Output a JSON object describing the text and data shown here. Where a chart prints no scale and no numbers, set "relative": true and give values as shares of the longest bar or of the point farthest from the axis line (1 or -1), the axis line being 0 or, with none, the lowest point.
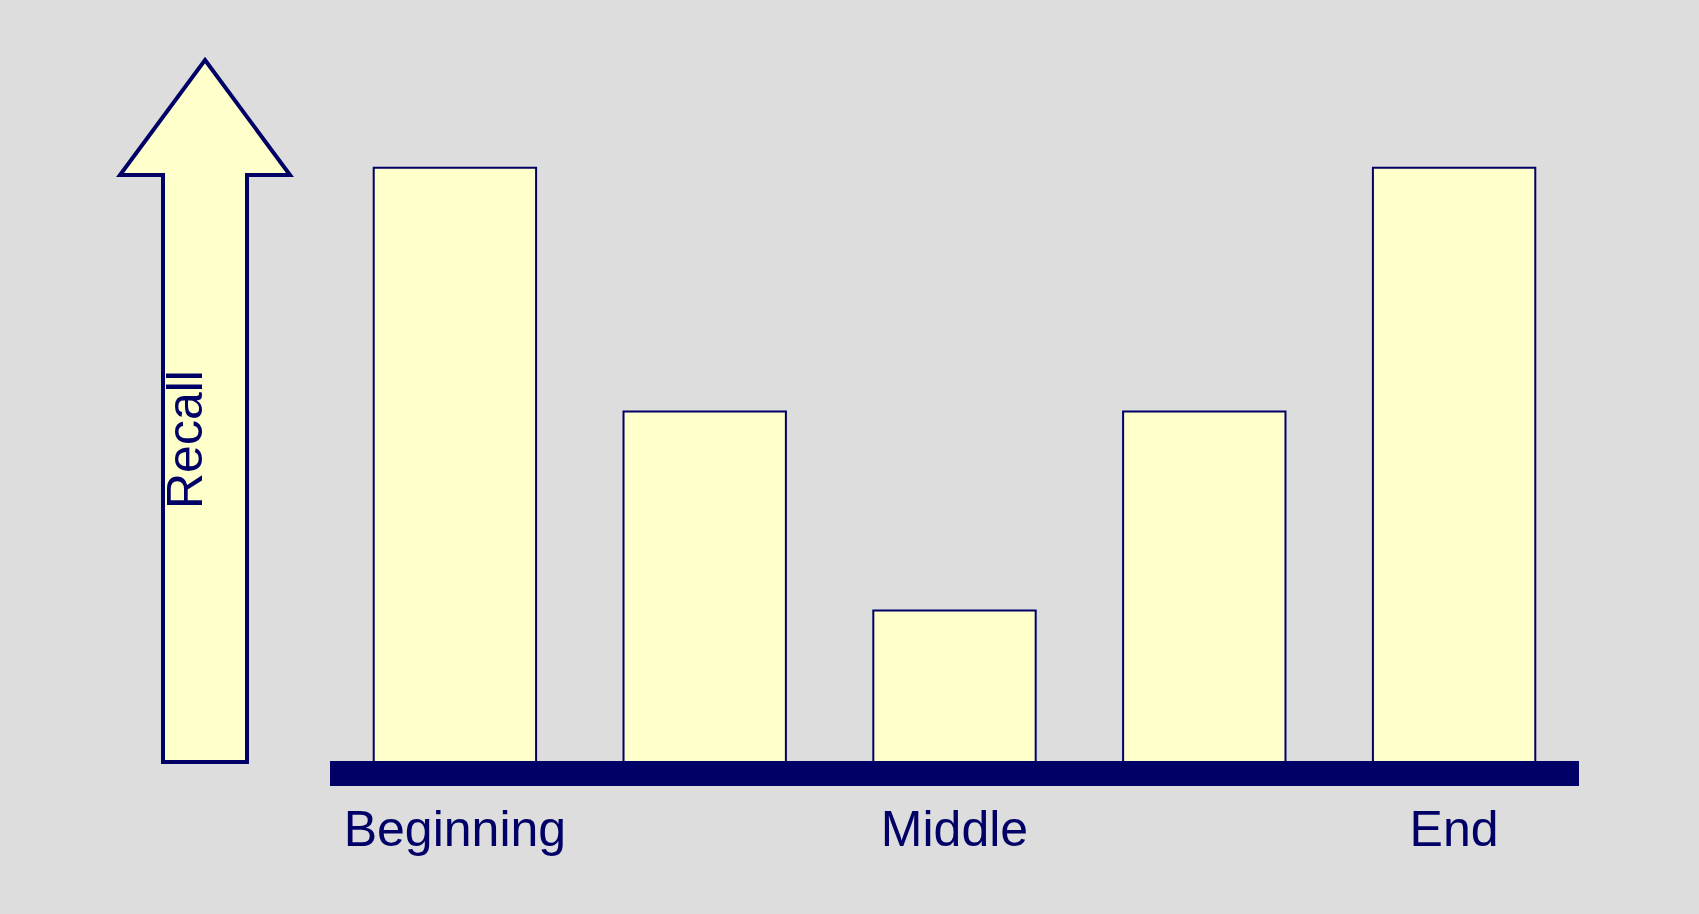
{
  "chart_data": {
    "type": "bar",
    "relative": true,
    "ylabel": "Recall",
    "categories": [
      "Beginning",
      null,
      "Middle",
      null,
      "End"
    ],
    "values": [
      1,
      0.59,
      0.255,
      0.59,
      1
    ],
    "color": "#ffffcc",
    "grid": false
  }
}
